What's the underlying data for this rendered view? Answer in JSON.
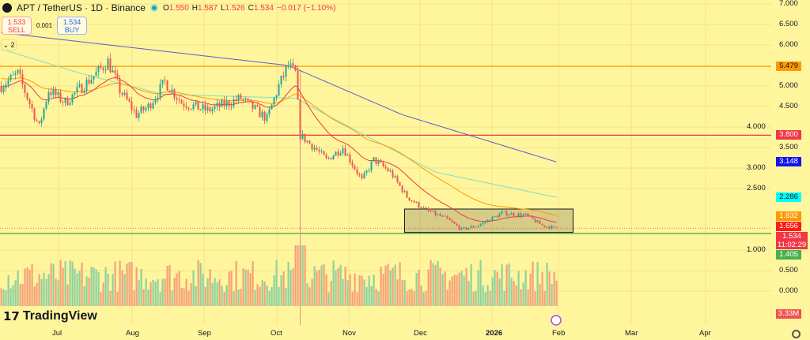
{
  "header": {
    "symbol": "APT / TetherUS · 1D · Binance",
    "open_label": "O",
    "open": "1.550",
    "high_label": "H",
    "high": "1.587",
    "low_label": "L",
    "low": "1.526",
    "close_label": "C",
    "close": "1.534",
    "change": "−0.017 (−1.10%)"
  },
  "trade": {
    "sell_price": "1.533",
    "sell_label": "SELL",
    "spread": "0.001",
    "buy_price": "1.534",
    "buy_label": "BUY"
  },
  "indicators_toggle": "2",
  "branding": "TradingView",
  "colors": {
    "background": "#fff59d",
    "up": "#26a69a",
    "down": "#ef5350",
    "volume_up": "#8fd1a0",
    "volume_down": "#f5a07a"
  },
  "chart_data": {
    "type": "candlestick",
    "x_ticks": [
      "Jul",
      "Aug",
      "Sep",
      "Oct",
      "Nov",
      "Dec",
      "2026",
      "Feb",
      "Mar",
      "Apr"
    ],
    "y_ticks": [
      "7.000",
      "6.500",
      "6.000",
      "5.000",
      "4.500",
      "4.000",
      "3.500",
      "3.000",
      "2.500",
      "1.000",
      "0.500",
      "0.000"
    ],
    "ylim": [
      -0.3,
      7.0
    ],
    "approx_close": [
      [
        "2025-06-06",
        5.0
      ],
      [
        "2025-06-13",
        5.3
      ],
      [
        "2025-06-22",
        4.0
      ],
      [
        "2025-06-26",
        4.9
      ],
      [
        "2025-07-03",
        4.6
      ],
      [
        "2025-07-16",
        5.3
      ],
      [
        "2025-07-21",
        5.6
      ],
      [
        "2025-07-26",
        4.9
      ],
      [
        "2025-08-02",
        4.3
      ],
      [
        "2025-08-07",
        4.5
      ],
      [
        "2025-08-14",
        5.1
      ],
      [
        "2025-08-21",
        4.6
      ],
      [
        "2025-09-01",
        4.4
      ],
      [
        "2025-09-15",
        4.7
      ],
      [
        "2025-09-26",
        4.2
      ],
      [
        "2025-10-01",
        5.0
      ],
      [
        "2025-10-05",
        5.5
      ],
      [
        "2025-10-08",
        5.3
      ],
      [
        "2025-10-10",
        3.8
      ],
      [
        "2025-10-16",
        3.5
      ],
      [
        "2025-10-21",
        3.2
      ],
      [
        "2025-10-28",
        3.5
      ],
      [
        "2025-11-05",
        2.7
      ],
      [
        "2025-11-10",
        3.2
      ],
      [
        "2025-11-17",
        2.9
      ],
      [
        "2025-11-24",
        2.3
      ],
      [
        "2025-12-01",
        2.0
      ],
      [
        "2025-12-11",
        1.75
      ],
      [
        "2025-12-17",
        1.5
      ],
      [
        "2025-12-24",
        1.6
      ],
      [
        "2026-01-03",
        1.9
      ],
      [
        "2026-01-13",
        1.85
      ],
      [
        "2026-01-20",
        1.6
      ],
      [
        "2026-01-26",
        1.534
      ]
    ],
    "ma_long": [
      [
        "2025-06-06",
        6.3
      ],
      [
        "2025-10-05",
        5.5
      ],
      [
        "2025-11-22",
        4.3
      ],
      [
        "2026-01-26",
        3.148
      ]
    ],
    "ma_mid": [
      [
        "2025-06-06",
        5.9
      ],
      [
        "2025-07-10",
        5.3
      ],
      [
        "2025-08-13",
        4.8
      ],
      [
        "2025-10-08",
        4.7
      ],
      [
        "2025-11-03",
        3.9
      ],
      [
        "2025-12-06",
        2.9
      ],
      [
        "2026-01-26",
        2.286
      ]
    ],
    "horizontal_lines": [
      {
        "price": 5.479,
        "color": "#ff9800"
      },
      {
        "price": 3.8,
        "color": "#f23645"
      },
      {
        "price": 1.405,
        "color": "#4caf50"
      }
    ],
    "range_box": {
      "from": "2025-11-23",
      "to": "2026-02-02",
      "top": 2.0,
      "bottom": 1.43
    },
    "vertical_line": "2025-10-10",
    "price_tags": [
      {
        "label": "5.479",
        "bg": "#ff9800",
        "fg": "#131722",
        "price": 5.479
      },
      {
        "label": "3.800",
        "bg": "#f23645",
        "fg": "#fff",
        "price": 3.8
      },
      {
        "label": "3.148",
        "bg": "#1414f0",
        "fg": "#fff",
        "price": 3.148
      },
      {
        "label": "2.286",
        "bg": "#00ffff",
        "fg": "#131722",
        "price": 2.286
      },
      {
        "label": "1.832",
        "bg": "#ff9800",
        "fg": "#fff",
        "price": 1.832
      },
      {
        "label": "1.656",
        "bg": "#ff1a1a",
        "fg": "#fff",
        "price": 1.656
      },
      {
        "label": "1.405",
        "bg": "#4caf50",
        "fg": "#fff",
        "price": 1.405
      }
    ],
    "last_price": {
      "label": "1.534",
      "countdown": "11:02:29"
    },
    "volume_label": "3.33M"
  }
}
